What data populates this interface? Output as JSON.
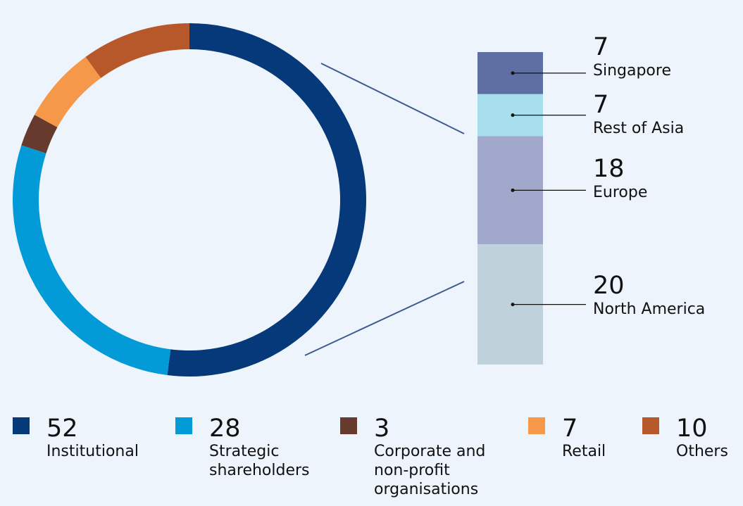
{
  "chart_data": [
    {
      "type": "pie",
      "categories": [
        "Institutional",
        "Strategic shareholders",
        "Corporate and non-profit organisations",
        "Retail",
        "Others"
      ],
      "values": [
        52,
        28,
        3,
        7,
        10
      ],
      "colors": [
        "#06397a",
        "#029bd7",
        "#663a2c",
        "#f6984a",
        "#b6582a"
      ]
    },
    {
      "type": "bar",
      "stacked": true,
      "categories": [
        "Singapore",
        "Rest of Asia",
        "Europe",
        "North America"
      ],
      "values": [
        7,
        7,
        18,
        20
      ],
      "colors": [
        "#5f6fa4",
        "#a6deed",
        "#a2a8cb",
        "#bfd1db"
      ]
    }
  ],
  "legend": [
    {
      "value": "52",
      "label": "Institutional"
    },
    {
      "value": "28",
      "label": "Strategic shareholders"
    },
    {
      "value": "3",
      "label": "Corporate and non-profit organisations"
    },
    {
      "value": "7",
      "label": "Retail"
    },
    {
      "value": "10",
      "label": "Others"
    }
  ],
  "bar_labels": [
    {
      "value": "7",
      "label": "Singapore"
    },
    {
      "value": "7",
      "label": "Rest of Asia"
    },
    {
      "value": "18",
      "label": "Europe"
    },
    {
      "value": "20",
      "label": "North America"
    }
  ]
}
